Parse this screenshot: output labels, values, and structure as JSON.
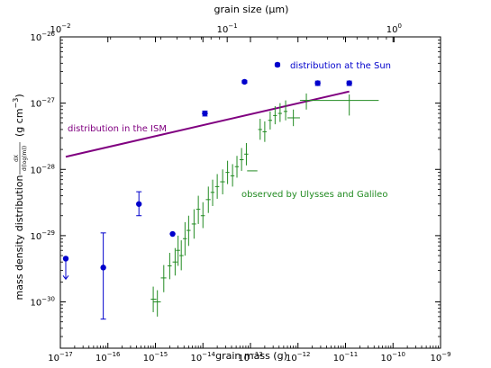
{
  "chart_data": {
    "type": "scatter",
    "xlabel": "grain mass (g)",
    "x2label": "grain size (μm)",
    "ylabel_main": "mass density distribution",
    "ylabel_unit": "(g cm",
    "ylabel_unit_exp": "−3",
    "ylabel_unit_close": ")",
    "ylabel_fraction_top": "dX",
    "ylabel_fraction_bottom": "d(log(m))",
    "x_scale": "log",
    "y_scale": "log",
    "xlim": [
      1e-17,
      1e-09
    ],
    "ylim": [
      2e-31,
      1e-26
    ],
    "x2lim": [
      0.01,
      1.9
    ],
    "x_ticks": [
      {
        "exp": -17,
        "label_base": "10",
        "label_exp": "−17"
      },
      {
        "exp": -16,
        "label_base": "10",
        "label_exp": "−16"
      },
      {
        "exp": -15,
        "label_base": "10",
        "label_exp": "−15"
      },
      {
        "exp": -14,
        "label_base": "10",
        "label_exp": "−14"
      },
      {
        "exp": -13,
        "label_base": "10",
        "label_exp": "−13"
      },
      {
        "exp": -12,
        "label_base": "10",
        "label_exp": "−12"
      },
      {
        "exp": -11,
        "label_base": "10",
        "label_exp": "−11"
      },
      {
        "exp": -10,
        "label_base": "10",
        "label_exp": "−10"
      },
      {
        "exp": -9,
        "label_base": "10",
        "label_exp": "−9"
      }
    ],
    "y_ticks": [
      {
        "exp": -30,
        "label_base": "10",
        "label_exp": "−30"
      },
      {
        "exp": -29,
        "label_base": "10",
        "label_exp": "−29"
      },
      {
        "exp": -28,
        "label_base": "10",
        "label_exp": "−28"
      },
      {
        "exp": -27,
        "label_base": "10",
        "label_exp": "−27"
      },
      {
        "exp": -26,
        "label_base": "10",
        "label_exp": "−26"
      }
    ],
    "x2_ticks": [
      {
        "value": 0.01,
        "label_base": "10",
        "label_exp": "−2"
      },
      {
        "value": 0.1,
        "label_base": "10",
        "label_exp": "−1"
      },
      {
        "value": 1,
        "label_base": "10",
        "label_exp": "0"
      }
    ],
    "series": [
      {
        "name": "distribution in the ISM",
        "type": "line",
        "color": "#800080",
        "points": [
          [
            1.3e-17,
            1.55e-28
          ],
          [
            1.2e-11,
            1.5e-27
          ]
        ]
      },
      {
        "name": "distribution at the Sun",
        "type": "errorbar",
        "color": "#0000cc",
        "points": [
          {
            "x": 1.3e-17,
            "y": 4.5e-30,
            "ylo": 2.2e-30,
            "yhi": 4.5e-30,
            "upper_limit": true
          },
          {
            "x": 8e-17,
            "y": 3.3e-30,
            "ylo": 5.5e-31,
            "yhi": 1.1e-29
          },
          {
            "x": 4.5e-16,
            "y": 3e-29,
            "ylo": 2e-29,
            "yhi": 4.6e-29
          },
          {
            "x": 2.3e-15,
            "y": 1.06e-29,
            "ylo": 1.06e-29,
            "yhi": 1.06e-29
          },
          {
            "x": 1.1e-14,
            "y": 7e-28,
            "ylo": 6.4e-28,
            "yhi": 7.6e-28
          },
          {
            "x": 7.5e-14,
            "y": 2.1e-27,
            "ylo": 2e-27,
            "yhi": 2.2e-27
          },
          {
            "x": 3.7e-13,
            "y": 3.8e-27,
            "ylo": 3.6e-27,
            "yhi": 4e-27
          },
          {
            "x": 2.6e-12,
            "y": 2e-27,
            "ylo": 1.85e-27,
            "yhi": 2.15e-27
          },
          {
            "x": 1.2e-11,
            "y": 2e-27,
            "ylo": 1.85e-27,
            "yhi": 2.15e-27
          }
        ]
      },
      {
        "name": "observed by Ulysses and Galileo",
        "type": "errorbar",
        "color": "#228b22",
        "points": [
          {
            "x": 9e-16,
            "y": 1.1e-30,
            "ylo": 7e-31,
            "yhi": 1.7e-30,
            "xlo": 8e-16,
            "xhi": 1.05e-15
          },
          {
            "x": 1.1e-15,
            "y": 1e-30,
            "ylo": 6e-31,
            "yhi": 1.5e-30,
            "xlo": 9e-16,
            "xhi": 1.3e-15
          },
          {
            "x": 1.5e-15,
            "y": 2.3e-30,
            "ylo": 1.4e-30,
            "yhi": 3.6e-30,
            "xlo": 1.3e-15,
            "xhi": 1.7e-15
          },
          {
            "x": 2e-15,
            "y": 3.5e-30,
            "ylo": 2.2e-30,
            "yhi": 5.5e-30,
            "xlo": 1.8e-15,
            "xhi": 2.2e-15
          },
          {
            "x": 2.6e-15,
            "y": 4e-30,
            "ylo": 2.5e-30,
            "yhi": 6.5e-30,
            "xlo": 2.3e-15,
            "xhi": 2.9e-15
          },
          {
            "x": 3e-15,
            "y": 6e-30,
            "ylo": 3.5e-30,
            "yhi": 1e-29,
            "xlo": 2.7e-15,
            "xhi": 3.3e-15
          },
          {
            "x": 3.5e-15,
            "y": 5e-30,
            "ylo": 3e-30,
            "yhi": 8.5e-30,
            "xlo": 3.2e-15,
            "xhi": 3.9e-15
          },
          {
            "x": 4.2e-15,
            "y": 9e-30,
            "ylo": 5e-30,
            "yhi": 1.6e-29,
            "xlo": 3.8e-15,
            "xhi": 4.6e-15
          },
          {
            "x": 5e-15,
            "y": 1.2e-29,
            "ylo": 7e-30,
            "yhi": 2e-29,
            "xlo": 4.5e-15,
            "xhi": 5.5e-15
          },
          {
            "x": 6.5e-15,
            "y": 1.5e-29,
            "ylo": 9e-30,
            "yhi": 2.5e-29,
            "xlo": 5.8e-15,
            "xhi": 7.2e-15
          },
          {
            "x": 8e-15,
            "y": 2.5e-29,
            "ylo": 1.5e-29,
            "yhi": 4e-29,
            "xlo": 7.2e-15,
            "xhi": 8.8e-15
          },
          {
            "x": 1e-14,
            "y": 2e-29,
            "ylo": 1.3e-29,
            "yhi": 3.2e-29,
            "xlo": 9e-15,
            "xhi": 1.1e-14
          },
          {
            "x": 1.3e-14,
            "y": 3.5e-29,
            "ylo": 2.2e-29,
            "yhi": 5.5e-29,
            "xlo": 1.15e-14,
            "xhi": 1.45e-14
          },
          {
            "x": 1.6e-14,
            "y": 4.5e-29,
            "ylo": 2.8e-29,
            "yhi": 7e-29,
            "xlo": 1.45e-14,
            "xhi": 1.75e-14
          },
          {
            "x": 2e-14,
            "y": 5.5e-29,
            "ylo": 3.6e-29,
            "yhi": 8.5e-29,
            "xlo": 1.8e-14,
            "xhi": 2.2e-14
          },
          {
            "x": 2.6e-14,
            "y": 6.5e-29,
            "ylo": 4.2e-29,
            "yhi": 1e-28,
            "xlo": 2.3e-14,
            "xhi": 2.9e-14
          },
          {
            "x": 3.3e-14,
            "y": 9e-29,
            "ylo": 6e-29,
            "yhi": 1.35e-28,
            "xlo": 3e-14,
            "xhi": 3.6e-14
          },
          {
            "x": 4.2e-14,
            "y": 8e-29,
            "ylo": 5.5e-29,
            "yhi": 1.2e-28,
            "xlo": 3.8e-14,
            "xhi": 4.6e-14
          },
          {
            "x": 5.2e-14,
            "y": 1.1e-28,
            "ylo": 7.5e-29,
            "yhi": 1.6e-28,
            "xlo": 4.7e-14,
            "xhi": 5.7e-14
          },
          {
            "x": 6.5e-14,
            "y": 1.4e-28,
            "ylo": 9.5e-29,
            "yhi": 2.1e-28,
            "xlo": 5.9e-14,
            "xhi": 7.2e-14
          },
          {
            "x": 8.2e-14,
            "y": 1.7e-28,
            "ylo": 1.15e-28,
            "yhi": 2.5e-28,
            "xlo": 7.4e-14,
            "xhi": 9e-14
          },
          {
            "x": 1.1e-13,
            "y": 9.5e-29,
            "ylo": 9.5e-29,
            "yhi": 9.5e-29,
            "xlo": 8.5e-14,
            "xhi": 1.4e-13
          },
          {
            "x": 1.6e-13,
            "y": 4e-28,
            "ylo": 2.8e-28,
            "yhi": 5.8e-28,
            "xlo": 1.45e-13,
            "xhi": 1.75e-13
          },
          {
            "x": 2e-13,
            "y": 3.7e-28,
            "ylo": 2.6e-28,
            "yhi": 5.3e-28,
            "xlo": 1.8e-13,
            "xhi": 2.2e-13
          },
          {
            "x": 2.6e-13,
            "y": 5.5e-28,
            "ylo": 4e-28,
            "yhi": 7.5e-28,
            "xlo": 2.35e-13,
            "xhi": 2.85e-13
          },
          {
            "x": 3.3e-13,
            "y": 6.5e-28,
            "ylo": 4.8e-28,
            "yhi": 9e-28,
            "xlo": 3e-13,
            "xhi": 3.6e-13
          },
          {
            "x": 4.2e-13,
            "y": 7e-28,
            "ylo": 5.2e-28,
            "yhi": 1e-27,
            "xlo": 3.8e-13,
            "xhi": 4.6e-13
          },
          {
            "x": 5.5e-13,
            "y": 7.5e-28,
            "ylo": 5.5e-28,
            "yhi": 1.1e-27,
            "xlo": 5e-13,
            "xhi": 6e-13
          },
          {
            "x": 8e-13,
            "y": 6e-28,
            "ylo": 4.5e-28,
            "yhi": 8e-28,
            "xlo": 6e-13,
            "xhi": 1.1e-12
          },
          {
            "x": 1.5e-12,
            "y": 1.1e-27,
            "ylo": 8e-28,
            "yhi": 1.4e-27,
            "xlo": 1.1e-12,
            "xhi": 2e-12
          },
          {
            "x": 1.2e-11,
            "y": 1.1e-27,
            "ylo": 6.5e-28,
            "yhi": 1.35e-27,
            "xlo": 1.5e-12,
            "xhi": 5e-11
          }
        ]
      }
    ],
    "annotations": [
      {
        "text": "distribution at the Sun",
        "color": "#0000cc"
      },
      {
        "text": "distribution in the ISM",
        "color": "#800080"
      },
      {
        "text": "observed by Ulysses and Galileo",
        "color": "#228b22"
      }
    ]
  }
}
